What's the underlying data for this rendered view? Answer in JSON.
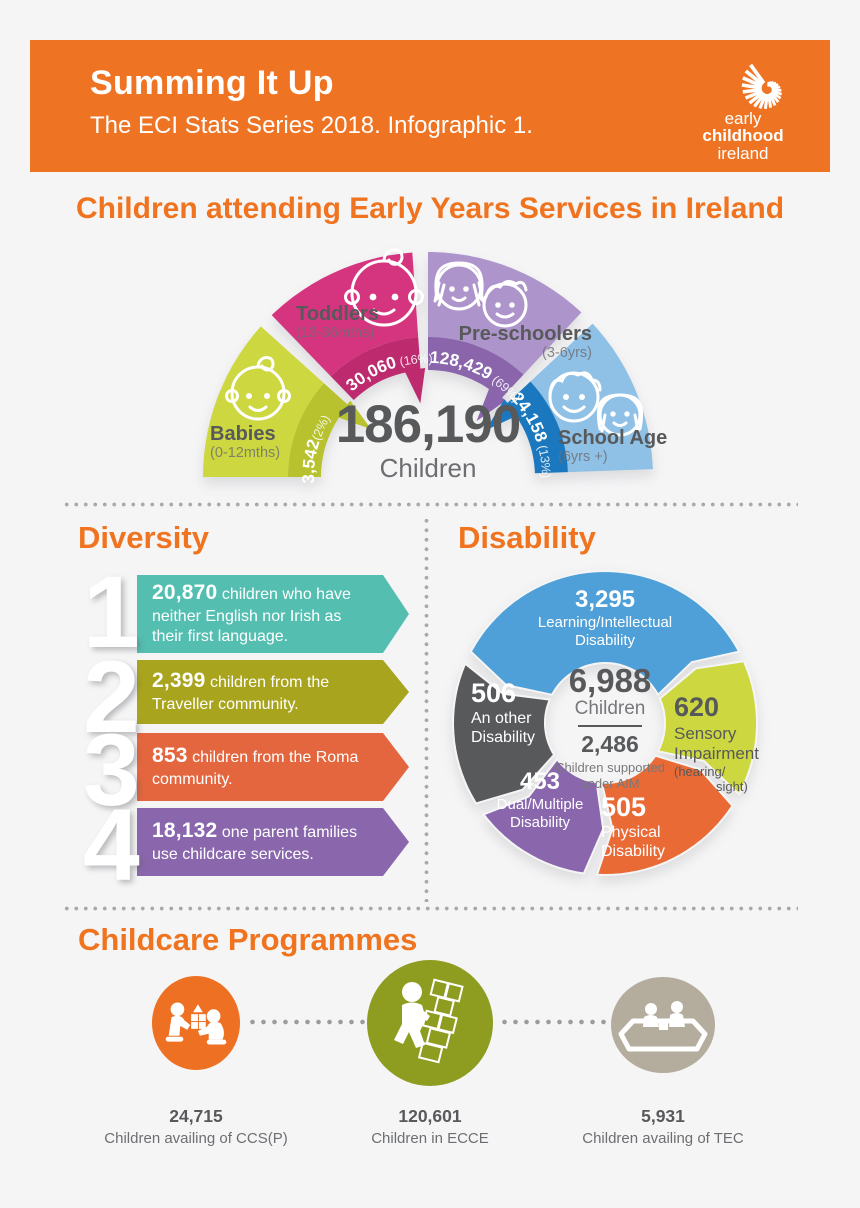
{
  "header": {
    "title": "Summing It Up",
    "subtitle": "The ECI Stats Series 2018. Infographic 1.",
    "logo": {
      "line1": "early",
      "line2": "childhood",
      "line3": "ireland"
    },
    "bg_color": "#ee7424"
  },
  "hero": {
    "title": "Children attending Early Years Services in Ireland"
  },
  "colors": {
    "accent_orange": "#f0741f",
    "text_dark": "#58595b",
    "text_mid": "#6d6e71",
    "page_bg": "#f5f5f6"
  },
  "chart_data": [
    {
      "type": "pie",
      "variant": "semicircle-gauge",
      "title": "Children attending Early Years Services in Ireland",
      "total": 186190,
      "total_display": "186,190",
      "total_caption": "Children",
      "segments": [
        {
          "label": "Babies",
          "sublabel": "(0-12mths)",
          "value": "3,542",
          "pct": "(2%)",
          "count": 3542,
          "percent": 2,
          "color": "#cdd740",
          "band_color": "#b7c22e",
          "a1": 138,
          "a2": 180,
          "notch": 141,
          "arc_offset": "2%"
        },
        {
          "label": "Toddlers",
          "sublabel": "(13-36mths)",
          "value": "30,060",
          "pct": " (16%)",
          "count": 30060,
          "percent": 16,
          "color": "#d5357f",
          "band_color": "#bd2a6e",
          "a1": 94,
          "a2": 134,
          "notch": 97,
          "arc_offset": "28.5%"
        },
        {
          "label": "Pre-schoolers",
          "sublabel": "(3-6yrs)",
          "value": "128,429",
          "pct": " (69%)",
          "count": 128429,
          "percent": 69,
          "color": "#ad95cb",
          "band_color": "#8a65ac",
          "a1": 47,
          "a2": 90,
          "notch": 50,
          "arc_offset": "50.5%"
        },
        {
          "label": "School Age",
          "sublabel": "(6yrs +)",
          "value": "24,158",
          "pct": " (13%)",
          "count": 24158,
          "percent": 13,
          "color": "#8fc0e6",
          "band_color": "#1b78be",
          "a1": 2,
          "a2": 43,
          "notch": 40,
          "arc_offset": "74%"
        }
      ]
    },
    {
      "type": "pie",
      "variant": "ring",
      "title": "Disability",
      "center": {
        "value": "6,988",
        "count": 6988,
        "caption": "Children",
        "aim_value": "2,486",
        "aim_count": 2486,
        "aim_caption_1": "Children supported",
        "aim_caption_2": "under AIM"
      },
      "segments": [
        {
          "value": "3,295",
          "count": 3295,
          "label": "Learning/Intellectual Disability",
          "lines": [
            "Learning/Intellectual",
            "Disability"
          ],
          "color": "#4fa0d8",
          "a1": 28,
          "a2": 152
        },
        {
          "value": "506",
          "count": 506,
          "label": "An other Disability",
          "lines": [
            "An other",
            "Disability"
          ],
          "color": "#58595b",
          "a1": 157,
          "a2": 212
        },
        {
          "value": "453",
          "count": 453,
          "label": "Dual/Multiple Disability",
          "lines": [
            "Dual/Multiple",
            "Disability"
          ],
          "color": "#8a67ad",
          "a1": 217,
          "a2": 262
        },
        {
          "value": "505",
          "count": 505,
          "label": "Physical Disability",
          "lines": [
            "Physical",
            "Disability"
          ],
          "color": "#e96a35",
          "a1": 267,
          "a2": 327
        },
        {
          "value": "620",
          "count": 620,
          "label": "Sensory Impairment (hearing/sight)",
          "lines": [
            "Sensory",
            "Impairment"
          ],
          "note1": "(hearing/",
          "note2": "sight)",
          "color": "#cdd73f",
          "a1": 332,
          "a2": 384
        }
      ]
    },
    {
      "type": "icon-stats",
      "title": "Childcare Programmes",
      "items": [
        {
          "value": "24,715",
          "count": 24715,
          "label": "Children availing of CCS(P)"
        },
        {
          "value": "120,601",
          "count": 120601,
          "label": "Children in ECCE"
        },
        {
          "value": "5,931",
          "count": 5931,
          "label": "Children availing of TEC"
        }
      ]
    }
  ],
  "diversity": {
    "heading": "Diversity",
    "items": [
      {
        "num": "1",
        "value": "20,870",
        "count": 20870,
        "text": "children who have neither English nor Irish as their first language.",
        "color": "#54bfb1"
      },
      {
        "num": "2",
        "value": "2,399",
        "count": 2399,
        "text": "children from the Traveller community.",
        "color": "#a8a41e"
      },
      {
        "num": "3",
        "value": "853",
        "count": 853,
        "text": "children from the Roma community.",
        "color": "#e4663f"
      },
      {
        "num": "4",
        "value": "18,132",
        "count": 18132,
        "text": "one parent families use childcare services.",
        "color": "#8a67ad"
      }
    ]
  },
  "disability_section": {
    "heading": "Disability"
  },
  "childcare": {
    "heading": "Childcare Programmes",
    "programmes": [
      {
        "value": "24,715",
        "label": "Children availing of CCS(P)",
        "color": "#ee7023",
        "icon": "blocks-play-icon"
      },
      {
        "value": "120,601",
        "label": "Children in ECCE",
        "color": "#8e9c20",
        "icon": "hopscotch-icon"
      },
      {
        "value": "5,931",
        "label": "Children availing of TEC",
        "color": "#b4ac9c",
        "icon": "sandbox-icon"
      }
    ]
  }
}
